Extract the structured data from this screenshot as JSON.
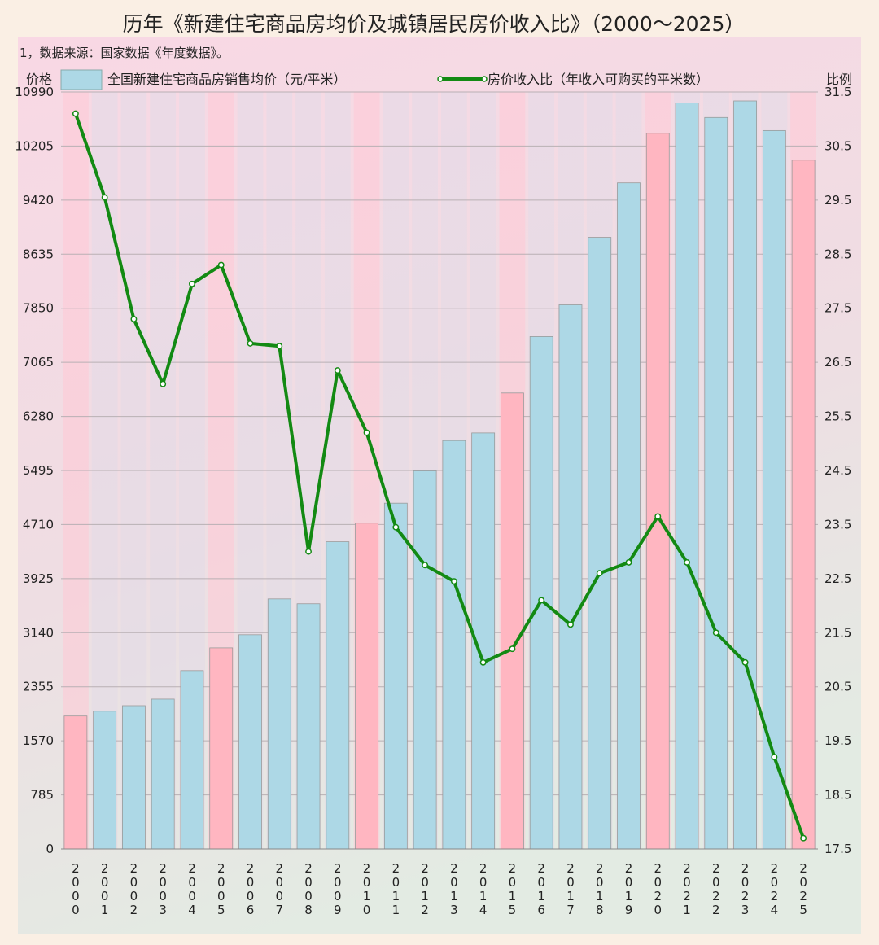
{
  "chart_data": {
    "type": "bar+line",
    "title": "历年《新建住宅商品房均价及城镇居民房价收入比》（2000～2025）",
    "note": "1，数据来源：国家数据《年度数据》。",
    "ylabel_left": "价格",
    "ylabel_right": "比例",
    "ylim_left": [
      0,
      10990
    ],
    "yticks_left": [
      0,
      785,
      1570,
      2355,
      3140,
      3925,
      4710,
      5495,
      6280,
      7065,
      7850,
      8635,
      9420,
      10205,
      10990
    ],
    "ylim_right": [
      17.5,
      31.5
    ],
    "yticks_right": [
      "17.5",
      "18.5",
      "19.5",
      "20.5",
      "21.5",
      "22.5",
      "23.5",
      "24.5",
      "25.5",
      "26.5",
      "27.5",
      "28.5",
      "29.5",
      "30.5",
      "31.5"
    ],
    "grid": true,
    "legend_placement": "top",
    "categories": [
      "2000",
      "2001",
      "2002",
      "2003",
      "2004",
      "2005",
      "2006",
      "2007",
      "2008",
      "2009",
      "2010",
      "2011",
      "2012",
      "2013",
      "2014",
      "2015",
      "2016",
      "2017",
      "2018",
      "2019",
      "2020",
      "2021",
      "2022",
      "2023",
      "2024",
      "2025"
    ],
    "series": [
      {
        "name": "全国新建住宅商品房销售均价（元/平米）",
        "type": "bar",
        "values": [
          1930,
          2000,
          2080,
          2175,
          2590,
          2920,
          3110,
          3630,
          3560,
          4460,
          4730,
          5020,
          5490,
          5930,
          6040,
          6620,
          7440,
          7900,
          8880,
          9670,
          10390,
          10830,
          10620,
          10860,
          10430,
          10000
        ]
      },
      {
        "name": "房价收入比（年收入可购买的平米数）",
        "type": "line",
        "values": [
          31.1,
          29.55,
          27.3,
          26.1,
          27.95,
          28.3,
          26.85,
          26.8,
          23.0,
          26.35,
          25.2,
          23.45,
          22.75,
          22.45,
          20.95,
          21.2,
          22.1,
          21.65,
          22.6,
          22.8,
          23.65,
          22.8,
          21.5,
          20.95,
          19.2,
          17.7
        ]
      }
    ],
    "colors": {
      "bar": "#add8e6",
      "bar_highlight": "#ffb6c1",
      "line": "#138a13",
      "marker_fill": "#ffffff"
    },
    "highlight_years": [
      "2000",
      "2005",
      "2010",
      "2015",
      "2020",
      "2025"
    ]
  }
}
